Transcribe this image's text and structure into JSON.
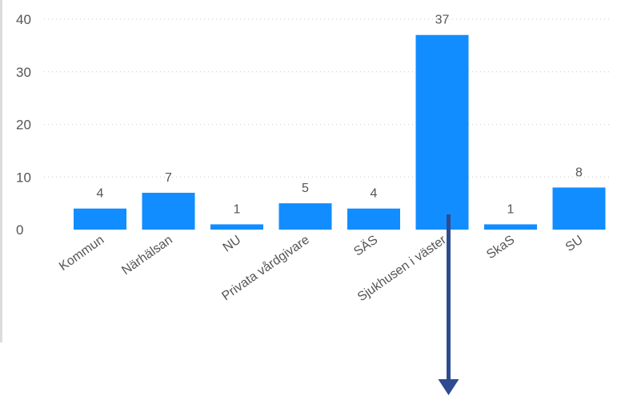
{
  "chart_data": {
    "type": "bar",
    "categories": [
      "Kommun",
      "Närhälsan",
      "NU",
      "Privata vårdgivare",
      "SÄS",
      "Sjukhusen i väster",
      "SkaS",
      "SU"
    ],
    "values": [
      4,
      7,
      1,
      5,
      4,
      37,
      1,
      8
    ],
    "data_labels": [
      "4",
      "7",
      "1",
      "5",
      "4",
      "37",
      "1",
      "8"
    ],
    "yticks": [
      0,
      10,
      20,
      30,
      40
    ],
    "ylim": [
      0,
      40
    ],
    "grid": true,
    "title": "",
    "xlabel": "",
    "ylabel": ""
  },
  "colors": {
    "bar": "#118dff",
    "arrow": "#2f4b8f",
    "axis_line": "#dcdcdc"
  },
  "annotation": {
    "type": "arrow",
    "points_from_category": "Sjukhusen i väster",
    "direction": "down"
  }
}
